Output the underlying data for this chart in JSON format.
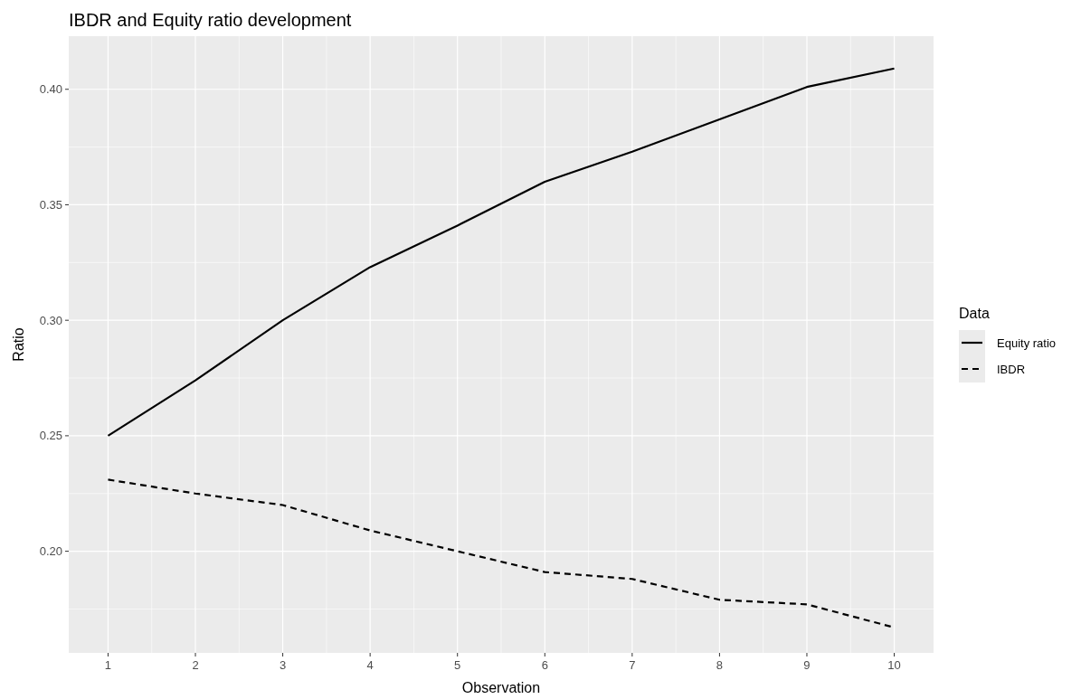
{
  "chart_data": {
    "type": "line",
    "title": "IBDR and Equity ratio development",
    "xlabel": "Observation",
    "ylabel": "Ratio",
    "legend_title": "Data",
    "legend": "right",
    "x": [
      1,
      2,
      3,
      4,
      5,
      6,
      7,
      8,
      9,
      10
    ],
    "xlim": [
      0.55,
      10.45
    ],
    "xticks": [
      1,
      2,
      3,
      4,
      5,
      6,
      7,
      8,
      9,
      10
    ],
    "ylim": [
      0.156,
      0.423
    ],
    "yticks": [
      {
        "value": 0.2,
        "label": "0.20"
      },
      {
        "value": 0.25,
        "label": "0.25"
      },
      {
        "value": 0.3,
        "label": "0.30"
      },
      {
        "value": 0.35,
        "label": "0.35"
      },
      {
        "value": 0.4,
        "label": "0.40"
      }
    ],
    "grid": true,
    "series": [
      {
        "name": "Equity ratio",
        "color": "#000000",
        "line_style": "solid",
        "values": [
          0.25,
          0.274,
          0.3,
          0.323,
          0.341,
          0.36,
          0.373,
          0.387,
          0.401,
          0.409
        ]
      },
      {
        "name": "IBDR",
        "color": "#000000",
        "line_style": "dashed",
        "values": [
          0.231,
          0.225,
          0.22,
          0.209,
          0.2,
          0.191,
          0.188,
          0.179,
          0.177,
          0.167
        ]
      }
    ]
  }
}
